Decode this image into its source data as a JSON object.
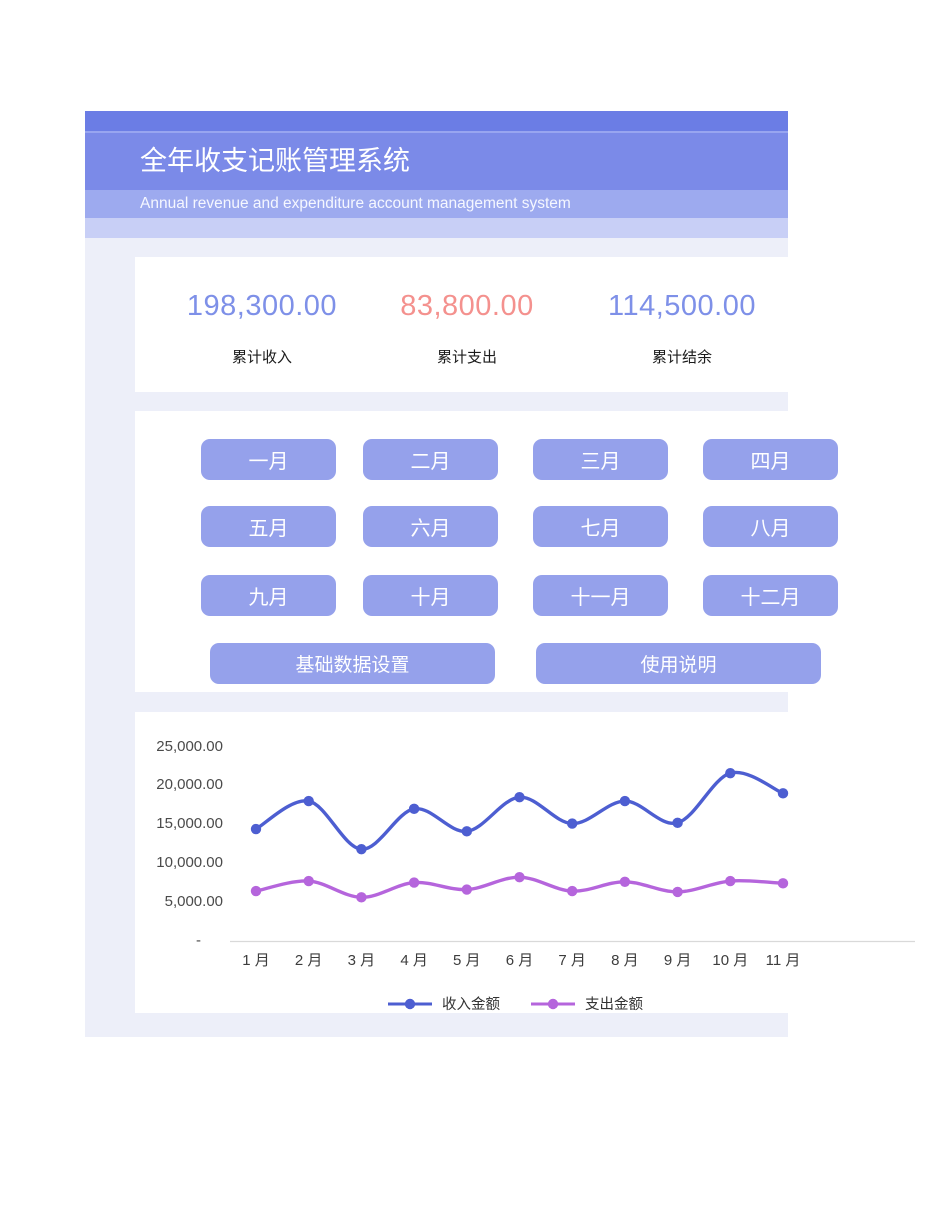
{
  "header": {
    "title": "全年收支记账管理系统",
    "subtitle": "Annual revenue and expenditure account management system"
  },
  "summary": {
    "income": {
      "value": "198,300.00",
      "label": "累计收入"
    },
    "expense": {
      "value": "83,800.00",
      "label": "累计支出"
    },
    "balance": {
      "value": "114,500.00",
      "label": "累计结余"
    }
  },
  "buttons": {
    "months": [
      "一月",
      "二月",
      "三月",
      "四月",
      "五月",
      "六月",
      "七月",
      "八月",
      "九月",
      "十月",
      "十一月",
      "十二月"
    ],
    "settings": "基础数据设置",
    "help": "使用说明"
  },
  "chart_data": {
    "type": "line",
    "x": [
      "1 月",
      "2 月",
      "3 月",
      "4 月",
      "5 月",
      "6 月",
      "7 月",
      "8 月",
      "9 月",
      "10 月",
      "11 月"
    ],
    "series": [
      {
        "name": "收入金额",
        "color": "#4d5ed1",
        "values": [
          14300,
          17900,
          11700,
          16900,
          14000,
          18400,
          15000,
          17900,
          15100,
          21500,
          18900
        ]
      },
      {
        "name": "支出金额",
        "color": "#b565dc",
        "values": [
          6300,
          7600,
          5500,
          7400,
          6500,
          8100,
          6300,
          7500,
          6200,
          7600,
          7300
        ]
      }
    ],
    "y_ticks": [
      "25,000.00",
      "20,000.00",
      "15,000.00",
      "10,000.00",
      "5,000.00",
      "-"
    ],
    "ylim": [
      0,
      25000
    ],
    "grid": false,
    "legend_position": "bottom",
    "smooth": true,
    "note": "right edge of sheet is cropped; 12th month cut off"
  },
  "colors": {
    "header_band": "#7b8ae8",
    "header_sub_band": "#9daaef",
    "sheet_background": "#edeff9",
    "button_fill": "#95a1eb",
    "income_text": "#7e90e8",
    "expense_text": "#f4918e",
    "income_line": "#4d5ed1",
    "expense_line": "#b565dc",
    "axis_line": "#d9d9d9"
  }
}
